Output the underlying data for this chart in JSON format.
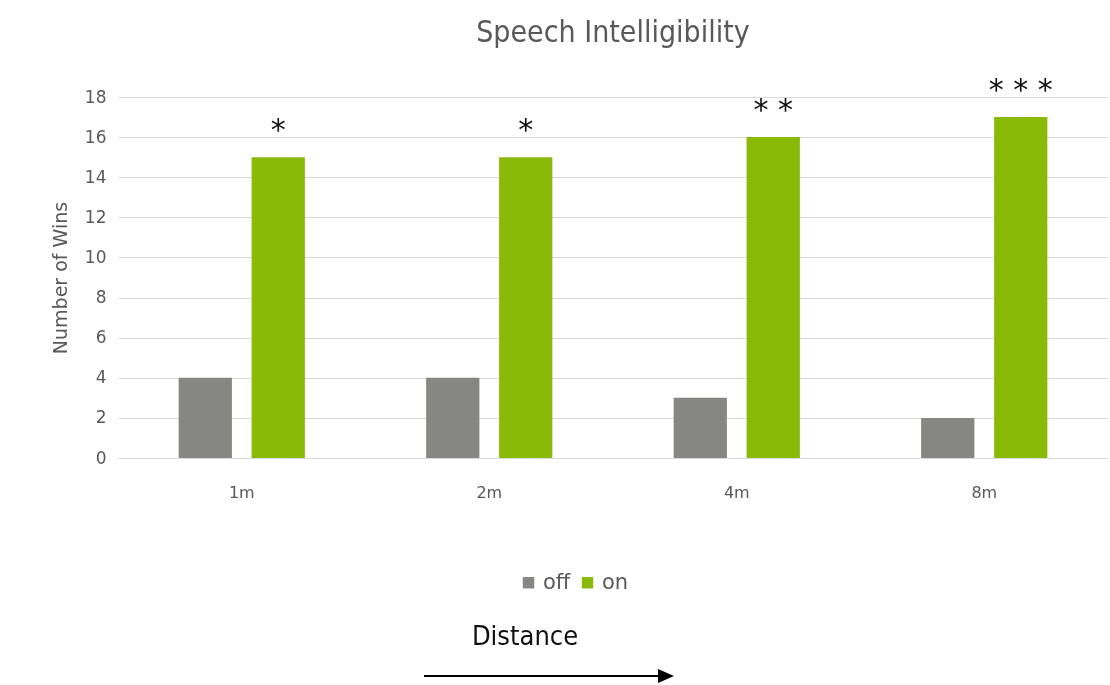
{
  "chart_data": {
    "type": "bar",
    "title": "Speech Intelligibility",
    "xlabel": "Distance",
    "ylabel": "Number of Wins",
    "categories": [
      "1m",
      "2m",
      "4m",
      "8m"
    ],
    "series": [
      {
        "name": "off",
        "color": "#868682",
        "values": [
          4,
          4,
          3,
          2
        ]
      },
      {
        "name": "on",
        "color": "#8aba08",
        "values": [
          15,
          15,
          16,
          17
        ]
      }
    ],
    "ylim": [
      0,
      18
    ],
    "yticks": [
      0,
      2,
      4,
      6,
      8,
      10,
      12,
      14,
      16,
      18
    ],
    "grid": "y",
    "legend": "bottom",
    "annotations": [
      "*",
      "*",
      "* *",
      "* * *"
    ]
  }
}
